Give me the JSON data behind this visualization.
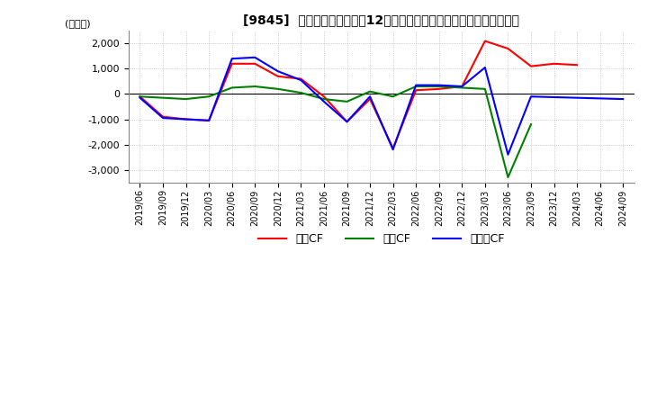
{
  "title": "[9845]  キャッシュフローの12か月移動合計の対前年同期増減額の推移",
  "ylabel": "(百万円)",
  "ylim": [
    -3500,
    2500
  ],
  "yticks": [
    -3000,
    -2000,
    -1000,
    0,
    1000,
    2000
  ],
  "x_labels": [
    "2019/06",
    "2019/09",
    "2019/12",
    "2020/03",
    "2020/06",
    "2020/09",
    "2020/12",
    "2021/03",
    "2021/06",
    "2021/09",
    "2021/12",
    "2022/03",
    "2022/06",
    "2022/09",
    "2022/12",
    "2023/03",
    "2023/06",
    "2023/09",
    "2023/12",
    "2024/03",
    "2024/06",
    "2024/09"
  ],
  "operating_cf": [
    -100,
    -900,
    -1000,
    -1050,
    1200,
    1200,
    700,
    600,
    -100,
    -1100,
    -200,
    -2150,
    150,
    200,
    300,
    2100,
    1800,
    1100,
    1200,
    1150,
    null,
    null
  ],
  "investing_cf": [
    -100,
    -150,
    -200,
    -100,
    250,
    300,
    200,
    50,
    -200,
    -300,
    100,
    -100,
    300,
    300,
    250,
    200,
    -3300,
    -1200,
    null,
    null,
    null,
    null
  ],
  "free_cf": [
    -150,
    -950,
    -1000,
    -1050,
    1400,
    1450,
    900,
    550,
    -300,
    -1100,
    -100,
    -2200,
    350,
    350,
    300,
    1050,
    -2400,
    -100,
    null,
    null,
    null,
    -200
  ],
  "operating_color": "#ff0000",
  "investing_color": "#008000",
  "free_color": "#0000ff",
  "legend_labels": [
    "営業CF",
    "投資CF",
    "フリーCF"
  ],
  "background_color": "#ffffff",
  "grid_color": "#cccccc",
  "grid_style": "dotted"
}
